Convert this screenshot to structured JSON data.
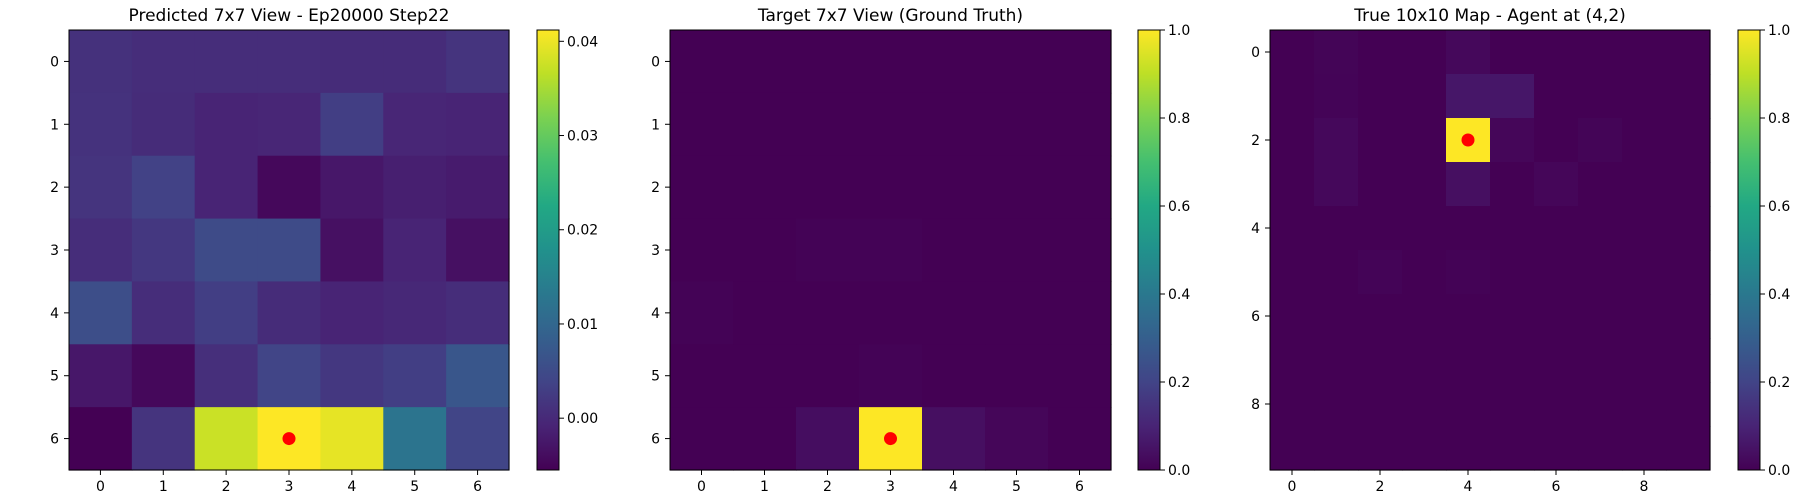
{
  "chart_data": [
    {
      "type": "heatmap",
      "title": "Predicted 7x7 View - Ep20000 Step22",
      "xlabel": "",
      "ylabel": "",
      "x_ticks": [
        0,
        1,
        2,
        3,
        4,
        5,
        6
      ],
      "y_ticks": [
        0,
        1,
        2,
        3,
        4,
        5,
        6
      ],
      "rows": 7,
      "cols": 7,
      "values": [
        [
          0.001,
          0.0005,
          0.0005,
          0.0005,
          0.0003,
          0.0003,
          0.0015
        ],
        [
          0.0012,
          0.0003,
          -0.0008,
          -0.0005,
          0.003,
          -0.0005,
          -0.0008
        ],
        [
          0.0015,
          0.0035,
          -0.0008,
          -0.0045,
          -0.0025,
          -0.0015,
          -0.002
        ],
        [
          0.0005,
          0.002,
          0.005,
          0.005,
          -0.0035,
          -0.0008,
          -0.0035
        ],
        [
          0.0055,
          0.0005,
          0.003,
          0.0003,
          -0.0008,
          -0.0003,
          0.0005
        ],
        [
          -0.0025,
          -0.0045,
          0.0008,
          0.004,
          0.002,
          0.003,
          0.007
        ],
        [
          -0.0055,
          0.0015,
          0.0375,
          0.0412,
          0.0395,
          0.0125,
          0.004
        ]
      ],
      "vmin": -0.0055,
      "vmax": 0.0412,
      "colorbar_ticks": [
        0.0,
        0.01,
        0.02,
        0.03,
        0.04
      ],
      "colorbar_tick_labels": [
        "0.00",
        "0.01",
        "0.02",
        "0.03",
        "0.04"
      ],
      "marker": {
        "x": 3,
        "y": 6,
        "color": "#ff0000"
      }
    },
    {
      "type": "heatmap",
      "title": "Target 7x7 View (Ground Truth)",
      "xlabel": "",
      "ylabel": "",
      "x_ticks": [
        0,
        1,
        2,
        3,
        4,
        5,
        6
      ],
      "y_ticks": [
        0,
        1,
        2,
        3,
        4,
        5,
        6
      ],
      "rows": 7,
      "cols": 7,
      "values": [
        [
          0,
          0,
          0,
          0,
          0,
          0,
          0
        ],
        [
          0,
          0,
          0,
          0,
          0,
          0,
          0
        ],
        [
          0,
          0,
          0,
          0,
          0,
          0,
          0
        ],
        [
          0,
          0,
          0.006,
          0.006,
          0,
          0,
          0
        ],
        [
          0.006,
          0,
          0,
          0,
          0,
          0,
          0
        ],
        [
          0,
          0,
          0,
          0.006,
          0,
          0,
          0
        ],
        [
          0,
          0,
          0.035,
          1.0,
          0.04,
          0.015,
          0
        ]
      ],
      "vmin": 0,
      "vmax": 1,
      "colorbar_ticks": [
        0,
        0.2,
        0.4,
        0.6,
        0.8,
        1.0
      ],
      "colorbar_tick_labels": [
        "0.0",
        "0.2",
        "0.4",
        "0.6",
        "0.8",
        "1.0"
      ],
      "marker": {
        "x": 3,
        "y": 6,
        "color": "#ff0000"
      }
    },
    {
      "type": "heatmap",
      "title": "True 10x10 Map - Agent at (4,2)",
      "xlabel": "",
      "ylabel": "",
      "x_ticks": [
        0,
        2,
        4,
        6,
        8
      ],
      "y_ticks": [
        0,
        2,
        4,
        6,
        8
      ],
      "rows": 10,
      "cols": 10,
      "values": [
        [
          0,
          0.01,
          0,
          0,
          0.02,
          0,
          0,
          0,
          0,
          0
        ],
        [
          0,
          0.008,
          0,
          0,
          0.06,
          0.06,
          0,
          0,
          0,
          0
        ],
        [
          0,
          0.02,
          0,
          0,
          1.0,
          0.015,
          0,
          0.01,
          0,
          0
        ],
        [
          0,
          0.02,
          0,
          0,
          0.04,
          0,
          0.015,
          0,
          0,
          0
        ],
        [
          0,
          0,
          0,
          0,
          0,
          0,
          0,
          0,
          0,
          0
        ],
        [
          0,
          0,
          0.008,
          0,
          0.006,
          0,
          0,
          0,
          0,
          0
        ],
        [
          0,
          0,
          0,
          0,
          0,
          0,
          0,
          0,
          0,
          0
        ],
        [
          0,
          0,
          0,
          0,
          0,
          0,
          0,
          0,
          0,
          0
        ],
        [
          0,
          0,
          0,
          0,
          0,
          0,
          0,
          0,
          0,
          0
        ],
        [
          0,
          0,
          0,
          0,
          0,
          0,
          0,
          0,
          0,
          0
        ]
      ],
      "vmin": 0,
      "vmax": 1,
      "colorbar_ticks": [
        0,
        0.2,
        0.4,
        0.6,
        0.8,
        1.0
      ],
      "colorbar_tick_labels": [
        "0.0",
        "0.2",
        "0.4",
        "0.6",
        "0.8",
        "1.0"
      ],
      "marker": {
        "x": 4,
        "y": 2,
        "color": "#ff0000"
      }
    }
  ],
  "colors": {
    "colormap": "viridis",
    "marker": "#ff0000"
  }
}
